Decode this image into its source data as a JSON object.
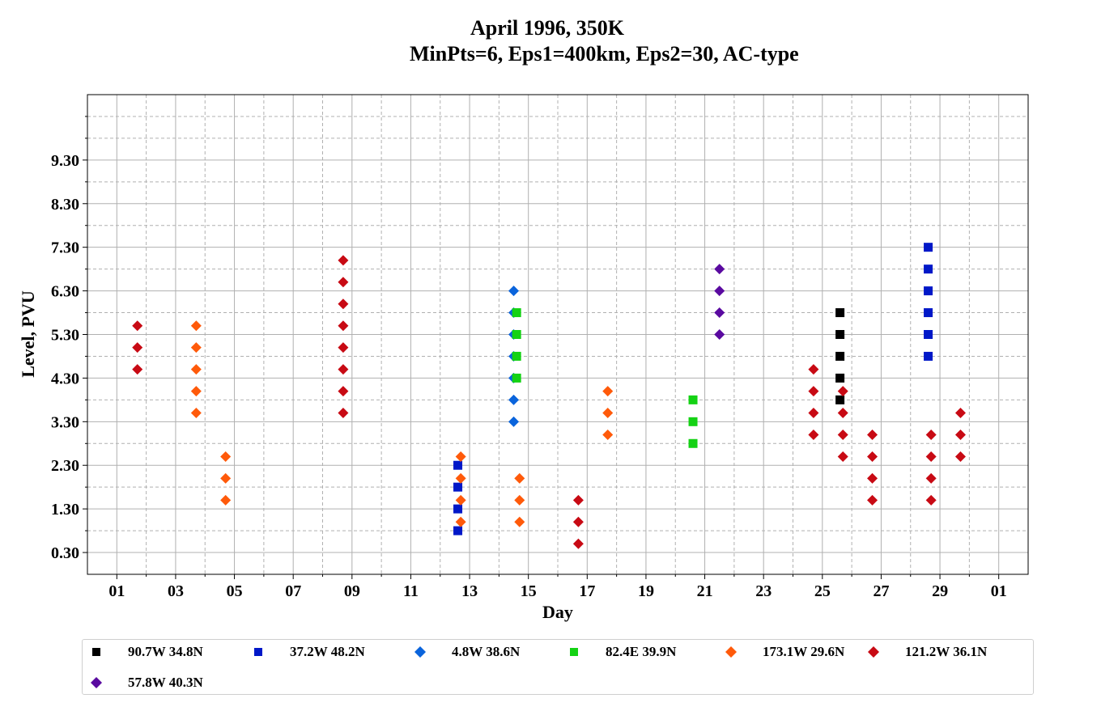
{
  "chart_data": {
    "type": "scatter",
    "title": "April 1996, 350K",
    "subtitle": "MinPts=6, Eps1=400km, Eps2=30, AC-type",
    "xlabel": "Day",
    "ylabel": "Level, PVU",
    "x_tick_labels": [
      "01",
      "03",
      "05",
      "07",
      "09",
      "11",
      "13",
      "15",
      "17",
      "19",
      "21",
      "23",
      "25",
      "27",
      "29",
      "01"
    ],
    "x_tick_days": [
      1,
      3,
      5,
      7,
      9,
      11,
      13,
      15,
      17,
      19,
      21,
      23,
      25,
      27,
      29,
      31
    ],
    "xlim": [
      0,
      32
    ],
    "y_tick_labels": [
      "0.30",
      "1.30",
      "2.30",
      "3.30",
      "4.30",
      "5.30",
      "6.30",
      "7.30",
      "8.30",
      "9.30"
    ],
    "y_tick_values": [
      0.3,
      1.3,
      2.3,
      3.3,
      4.3,
      5.3,
      6.3,
      7.3,
      8.3,
      9.3
    ],
    "ylim": [
      -0.2,
      10.8
    ],
    "grid": true,
    "legend_position": "bottom",
    "series": [
      {
        "name": "90.7W 34.8N",
        "marker": "square",
        "color": "#000000",
        "points": [
          [
            25.6,
            3.8
          ],
          [
            25.6,
            4.3
          ],
          [
            25.6,
            4.8
          ],
          [
            25.6,
            5.3
          ],
          [
            25.6,
            5.8
          ]
        ]
      },
      {
        "name": "37.2W 48.2N",
        "marker": "square",
        "color": "#0018c8",
        "points": [
          [
            12.6,
            0.8
          ],
          [
            12.6,
            1.3
          ],
          [
            12.6,
            1.8
          ],
          [
            12.6,
            2.3
          ],
          [
            28.6,
            4.8
          ],
          [
            28.6,
            5.3
          ],
          [
            28.6,
            5.8
          ],
          [
            28.6,
            6.3
          ],
          [
            28.6,
            6.8
          ],
          [
            28.6,
            7.3
          ]
        ]
      },
      {
        "name": "4.8W 38.6N",
        "marker": "diamond",
        "color": "#0a64dc",
        "points": [
          [
            14.5,
            3.3
          ],
          [
            14.5,
            3.8
          ],
          [
            14.5,
            4.3
          ],
          [
            14.5,
            4.8
          ],
          [
            14.5,
            5.3
          ],
          [
            14.5,
            5.8
          ],
          [
            14.5,
            6.3
          ]
        ]
      },
      {
        "name": "82.4E 39.9N",
        "marker": "square",
        "color": "#14d214",
        "points": [
          [
            14.6,
            4.3
          ],
          [
            14.6,
            4.8
          ],
          [
            14.6,
            5.3
          ],
          [
            14.6,
            5.8
          ],
          [
            20.6,
            2.8
          ],
          [
            20.6,
            3.3
          ],
          [
            20.6,
            3.8
          ]
        ]
      },
      {
        "name": "173.1W 29.6N",
        "marker": "diamond",
        "color": "#ff5a0a",
        "points": [
          [
            3.7,
            3.5
          ],
          [
            3.7,
            4.0
          ],
          [
            3.7,
            4.5
          ],
          [
            3.7,
            5.0
          ],
          [
            3.7,
            5.5
          ],
          [
            4.7,
            1.5
          ],
          [
            4.7,
            2.0
          ],
          [
            4.7,
            2.5
          ],
          [
            12.7,
            1.0
          ],
          [
            12.7,
            1.5
          ],
          [
            12.7,
            2.0
          ],
          [
            12.7,
            2.5
          ],
          [
            14.7,
            1.0
          ],
          [
            14.7,
            1.5
          ],
          [
            14.7,
            2.0
          ],
          [
            17.7,
            3.0
          ],
          [
            17.7,
            3.5
          ],
          [
            17.7,
            4.0
          ]
        ]
      },
      {
        "name": "121.2W 36.1N",
        "marker": "diamond",
        "color": "#c80a14",
        "points": [
          [
            1.7,
            4.5
          ],
          [
            1.7,
            5.0
          ],
          [
            1.7,
            5.5
          ],
          [
            8.7,
            3.5
          ],
          [
            8.7,
            4.0
          ],
          [
            8.7,
            4.5
          ],
          [
            8.7,
            5.0
          ],
          [
            8.7,
            5.5
          ],
          [
            8.7,
            6.0
          ],
          [
            8.7,
            6.5
          ],
          [
            8.7,
            7.0
          ],
          [
            16.7,
            0.5
          ],
          [
            16.7,
            1.0
          ],
          [
            16.7,
            1.5
          ],
          [
            24.7,
            3.0
          ],
          [
            24.7,
            3.5
          ],
          [
            24.7,
            4.0
          ],
          [
            24.7,
            4.5
          ],
          [
            25.7,
            2.5
          ],
          [
            25.7,
            3.0
          ],
          [
            25.7,
            3.5
          ],
          [
            25.7,
            4.0
          ],
          [
            26.7,
            1.5
          ],
          [
            26.7,
            2.0
          ],
          [
            26.7,
            2.5
          ],
          [
            26.7,
            3.0
          ],
          [
            28.7,
            1.5
          ],
          [
            28.7,
            2.0
          ],
          [
            28.7,
            2.5
          ],
          [
            28.7,
            3.0
          ],
          [
            29.7,
            2.5
          ],
          [
            29.7,
            3.0
          ],
          [
            29.7,
            3.5
          ]
        ]
      },
      {
        "name": "57.8W 40.3N",
        "marker": "diamond",
        "color": "#5a0aa0",
        "points": [
          [
            21.5,
            5.3
          ],
          [
            21.5,
            5.8
          ],
          [
            21.5,
            6.3
          ],
          [
            21.5,
            6.8
          ]
        ]
      }
    ]
  }
}
